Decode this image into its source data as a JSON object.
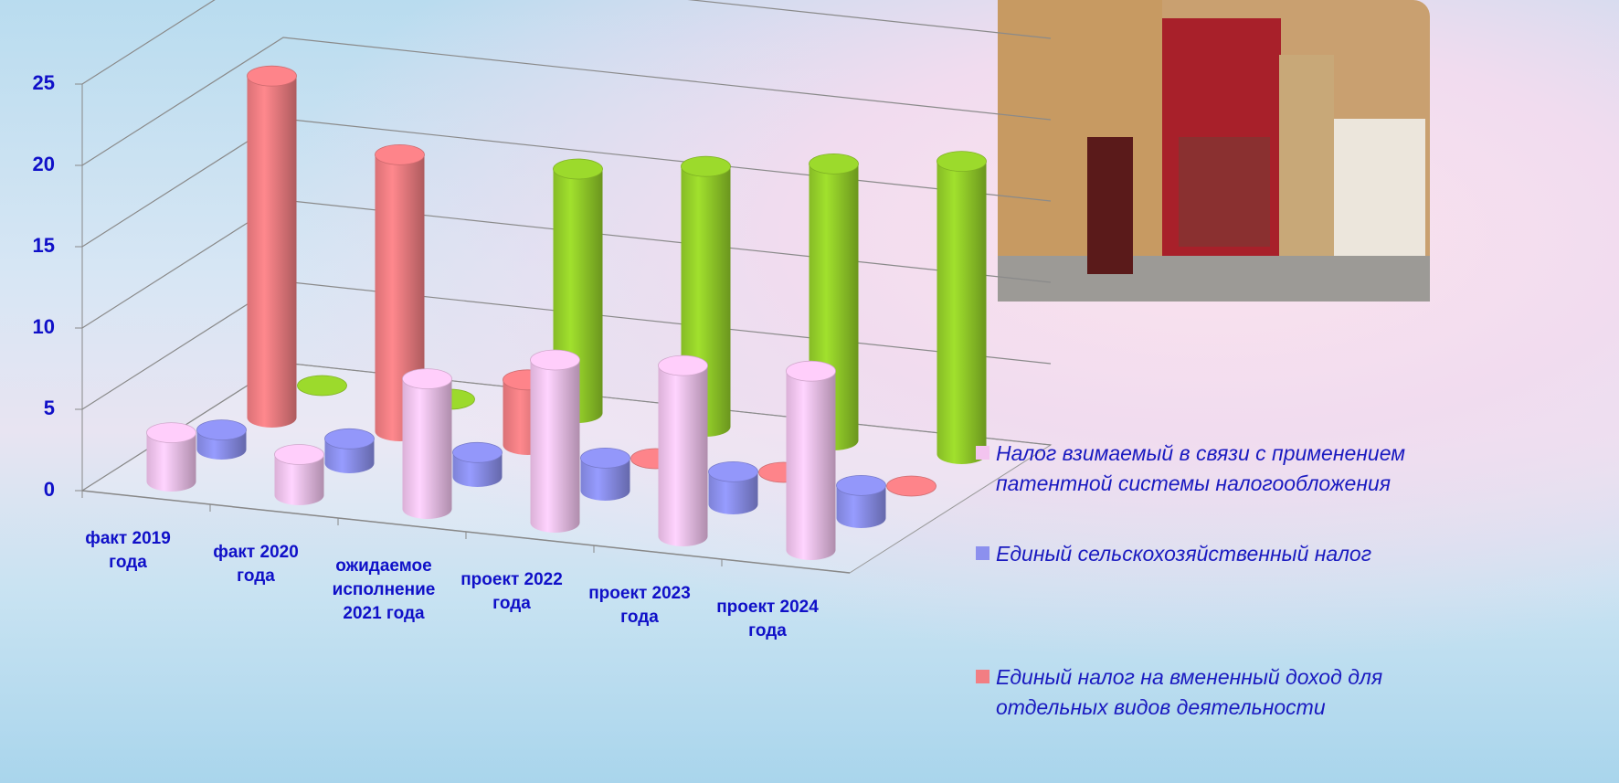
{
  "chart_data": {
    "type": "bar3d",
    "categories": [
      "факт 2019 года",
      "факт 2020 года",
      "ожидаемое исполнение 2021 года",
      "проект 2022 года",
      "проект 2023 года",
      "проект 2024 года"
    ],
    "series": [
      {
        "name": "Налог взимаемый в связи с применением патентной системы налогообложения",
        "color": "#f3c4ef",
        "values": [
          3,
          2.5,
          8,
          10,
          10.5,
          11
        ]
      },
      {
        "name": "Единый сельскохозяйственный налог",
        "color": "#8c90ee",
        "values": [
          1.2,
          1.5,
          1.5,
          2,
          2,
          2
        ]
      },
      {
        "name": "Единый налог на вмененный доход для отдельных видов деятельности",
        "color": "#f27e83",
        "values": [
          21,
          17,
          4,
          0,
          0,
          0
        ]
      },
      {
        "color": "#95d02a",
        "values": [
          0,
          0,
          15,
          16,
          17,
          18
        ]
      }
    ],
    "ylim": [
      0,
      25
    ],
    "yticks": [
      0,
      5,
      10,
      15,
      20,
      25
    ],
    "grid": true
  }
}
